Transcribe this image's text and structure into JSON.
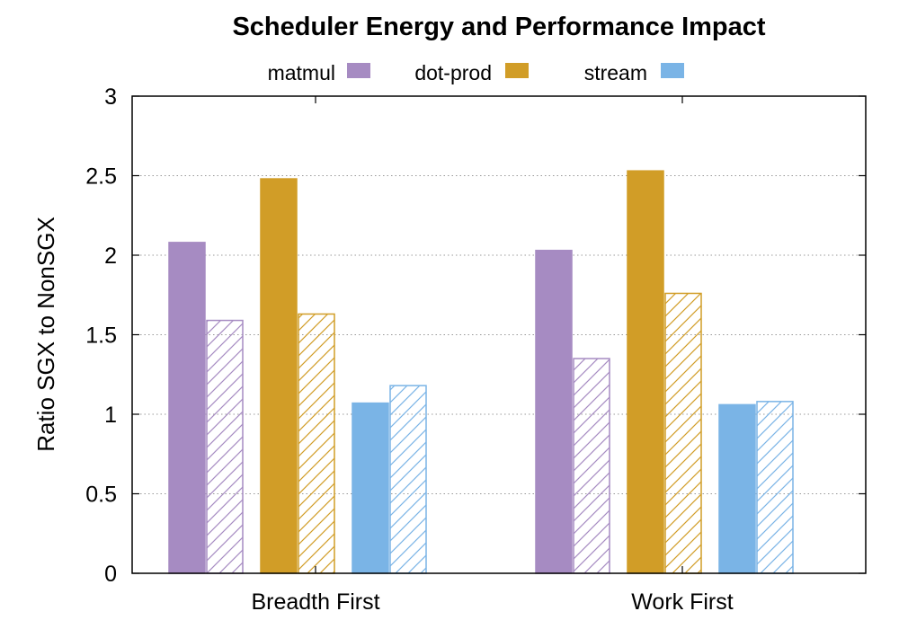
{
  "chart_data": {
    "type": "bar",
    "title": "Scheduler Energy and Performance Impact",
    "xlabel": "",
    "ylabel": "Ratio SGX to NonSGX",
    "ylim": [
      0,
      3
    ],
    "yticks": [
      "0",
      "0.5",
      "1",
      "1.5",
      "2",
      "2.5",
      "3"
    ],
    "grid": true,
    "legend_position": "top",
    "categories": [
      "Breadth First",
      "Work First"
    ],
    "series": [
      {
        "name": "matmul",
        "color": "#a68bc2",
        "values": [
          2.08,
          2.03
        ],
        "hatched_values": [
          1.59,
          1.35
        ]
      },
      {
        "name": "dot-prod",
        "color": "#d19d27",
        "values": [
          2.48,
          2.53
        ],
        "hatched_values": [
          1.63,
          1.76
        ]
      },
      {
        "name": "stream",
        "color": "#7ab4e6",
        "values": [
          1.07,
          1.06
        ],
        "hatched_values": [
          1.18,
          1.08
        ]
      }
    ]
  }
}
